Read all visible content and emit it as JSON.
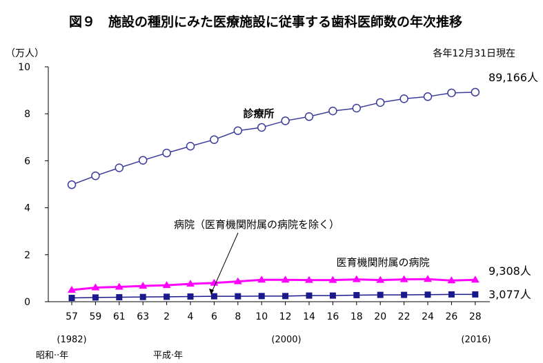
{
  "chart_data": {
    "type": "line",
    "title": "図９　施設の種別にみた医療施設に従事する歯科医師数の年次推移",
    "ylabel": "（万人）",
    "note": "各年12月31日現在",
    "ylim": [
      0,
      10
    ],
    "yticks": [
      "0",
      "2",
      "4",
      "6",
      "8",
      "10"
    ],
    "categories": [
      "57",
      "59",
      "61",
      "63",
      "2",
      "4",
      "6",
      "8",
      "10",
      "12",
      "14",
      "16",
      "18",
      "20",
      "22",
      "24",
      "26",
      "28"
    ],
    "year_notes": {
      "left": "(1982)",
      "middle": "(2000)",
      "right": "(2016)"
    },
    "era_labels": {
      "showa": "昭和··年",
      "heisei": "平成·年"
    },
    "series": [
      {
        "name": "診療所",
        "color": "#3b3b9c",
        "marker": "open-circle",
        "end_label": "89,166人",
        "values": [
          4.98,
          5.36,
          5.7,
          6.02,
          6.33,
          6.62,
          6.9,
          7.28,
          7.42,
          7.7,
          7.88,
          8.12,
          8.24,
          8.48,
          8.64,
          8.73,
          8.89,
          8.92
        ]
      },
      {
        "name": "医育機関附属の病院",
        "color": "#ff00ff",
        "marker": "triangle",
        "end_label": "9,308人",
        "values": [
          0.5,
          0.6,
          0.63,
          0.67,
          0.7,
          0.76,
          0.8,
          0.86,
          0.93,
          0.93,
          0.92,
          0.92,
          0.95,
          0.92,
          0.95,
          0.96,
          0.9,
          0.93
        ]
      },
      {
        "name": "病院（医育機関附属の病院を除く）",
        "color": "#1a1a8c",
        "marker": "square",
        "end_label": "3,077人",
        "values": [
          0.16,
          0.18,
          0.19,
          0.2,
          0.21,
          0.22,
          0.23,
          0.23,
          0.24,
          0.24,
          0.26,
          0.26,
          0.28,
          0.29,
          0.29,
          0.3,
          0.31,
          0.31
        ]
      }
    ],
    "grid": false,
    "legend": "inline labels"
  }
}
